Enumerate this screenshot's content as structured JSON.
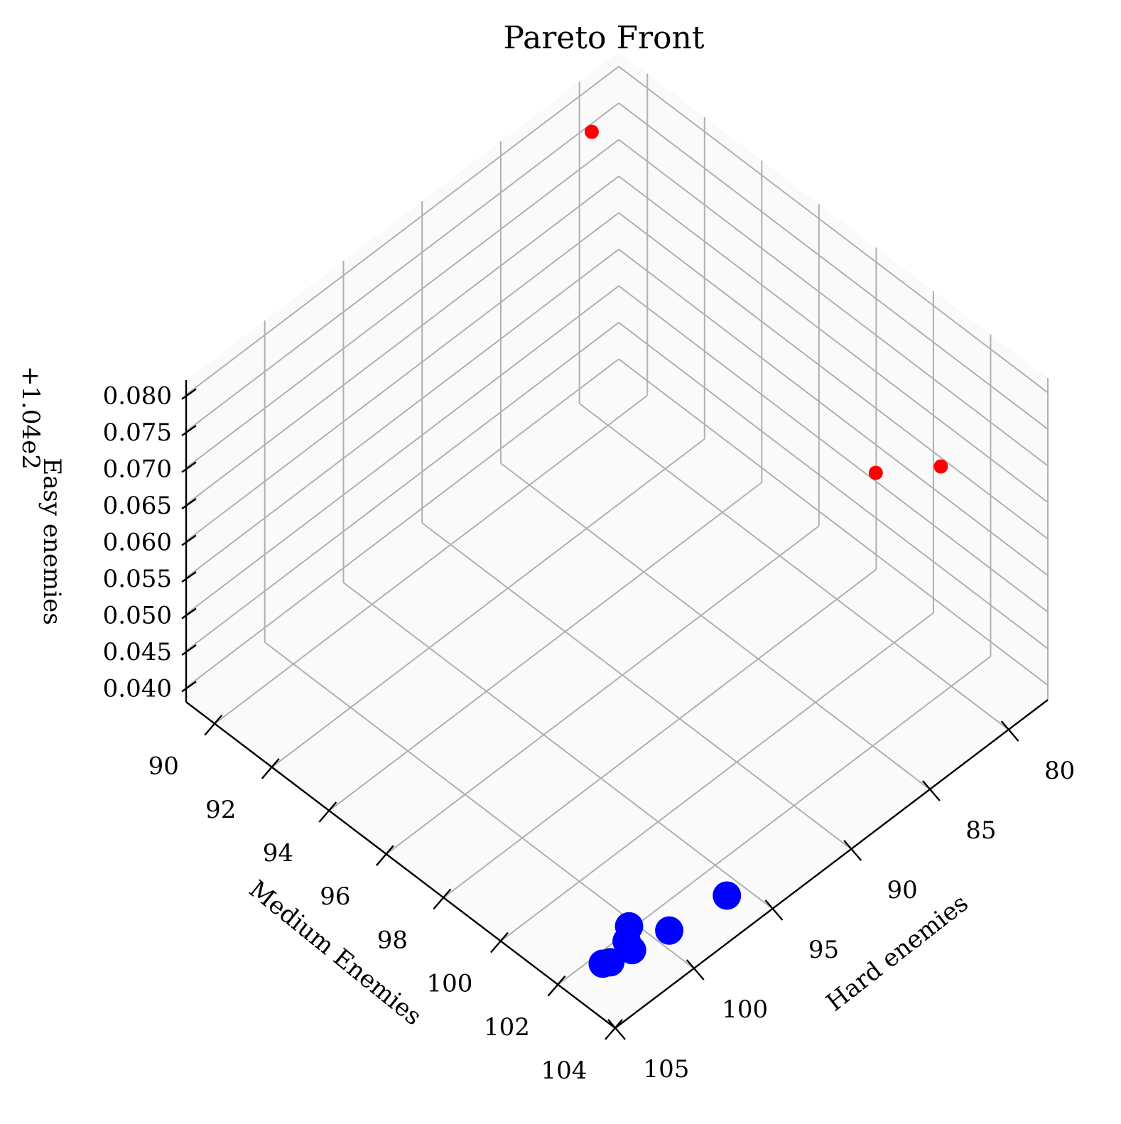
{
  "chart_data": {
    "type": "scatter",
    "projection": "3d",
    "title": "Pareto Front",
    "axes": {
      "x": {
        "label": "Hard enemies",
        "ticks": [
          80,
          85,
          90,
          95,
          100,
          105
        ],
        "tick_labels": [
          "80",
          "85",
          "90",
          "95",
          "100",
          "105"
        ],
        "range": [
          77.5,
          105
        ]
      },
      "y": {
        "label": "Medium Enemies",
        "ticks": [
          90,
          92,
          94,
          96,
          98,
          100,
          102,
          104
        ],
        "tick_labels": [
          "90",
          "92",
          "94",
          "96",
          "98",
          "100",
          "102",
          "104"
        ],
        "range": [
          89,
          104
        ]
      },
      "z": {
        "label": "Easy enemies",
        "ticks": [
          0.04,
          0.045,
          0.05,
          0.055,
          0.06,
          0.065,
          0.07,
          0.075,
          0.08
        ],
        "tick_labels": [
          "0.040",
          "0.045",
          "0.050",
          "0.055",
          "0.060",
          "0.065",
          "0.070",
          "0.075",
          "0.080"
        ],
        "range": [
          0.038,
          0.082
        ],
        "offset_text": "+1.04e2"
      }
    },
    "grid": true,
    "series": [
      {
        "color": "#ff0000",
        "marker_size": "small",
        "points": [
          {
            "x": 81.4,
            "y": 90.2,
            "z": 0.081
          },
          {
            "x": 84.3,
            "y": 104.0,
            "z": 0.081
          },
          {
            "x": 84.8,
            "y": 102.0,
            "z": 0.075
          }
        ]
      },
      {
        "color": "#0000ff",
        "marker_size": "large",
        "points": [
          {
            "x": 99.2,
            "y": 102.7,
            "z": 0.038
          },
          {
            "x": 100.3,
            "y": 101.9,
            "z": 0.038
          },
          {
            "x": 101.0,
            "y": 102.2,
            "z": 0.038
          },
          {
            "x": 102.4,
            "y": 102.4,
            "z": 0.038
          },
          {
            "x": 101.2,
            "y": 102.5,
            "z": 0.038
          },
          {
            "x": 95.9,
            "y": 102.9,
            "z": 0.038
          },
          {
            "x": 102.7,
            "y": 102.3,
            "z": 0.038
          }
        ]
      }
    ]
  }
}
